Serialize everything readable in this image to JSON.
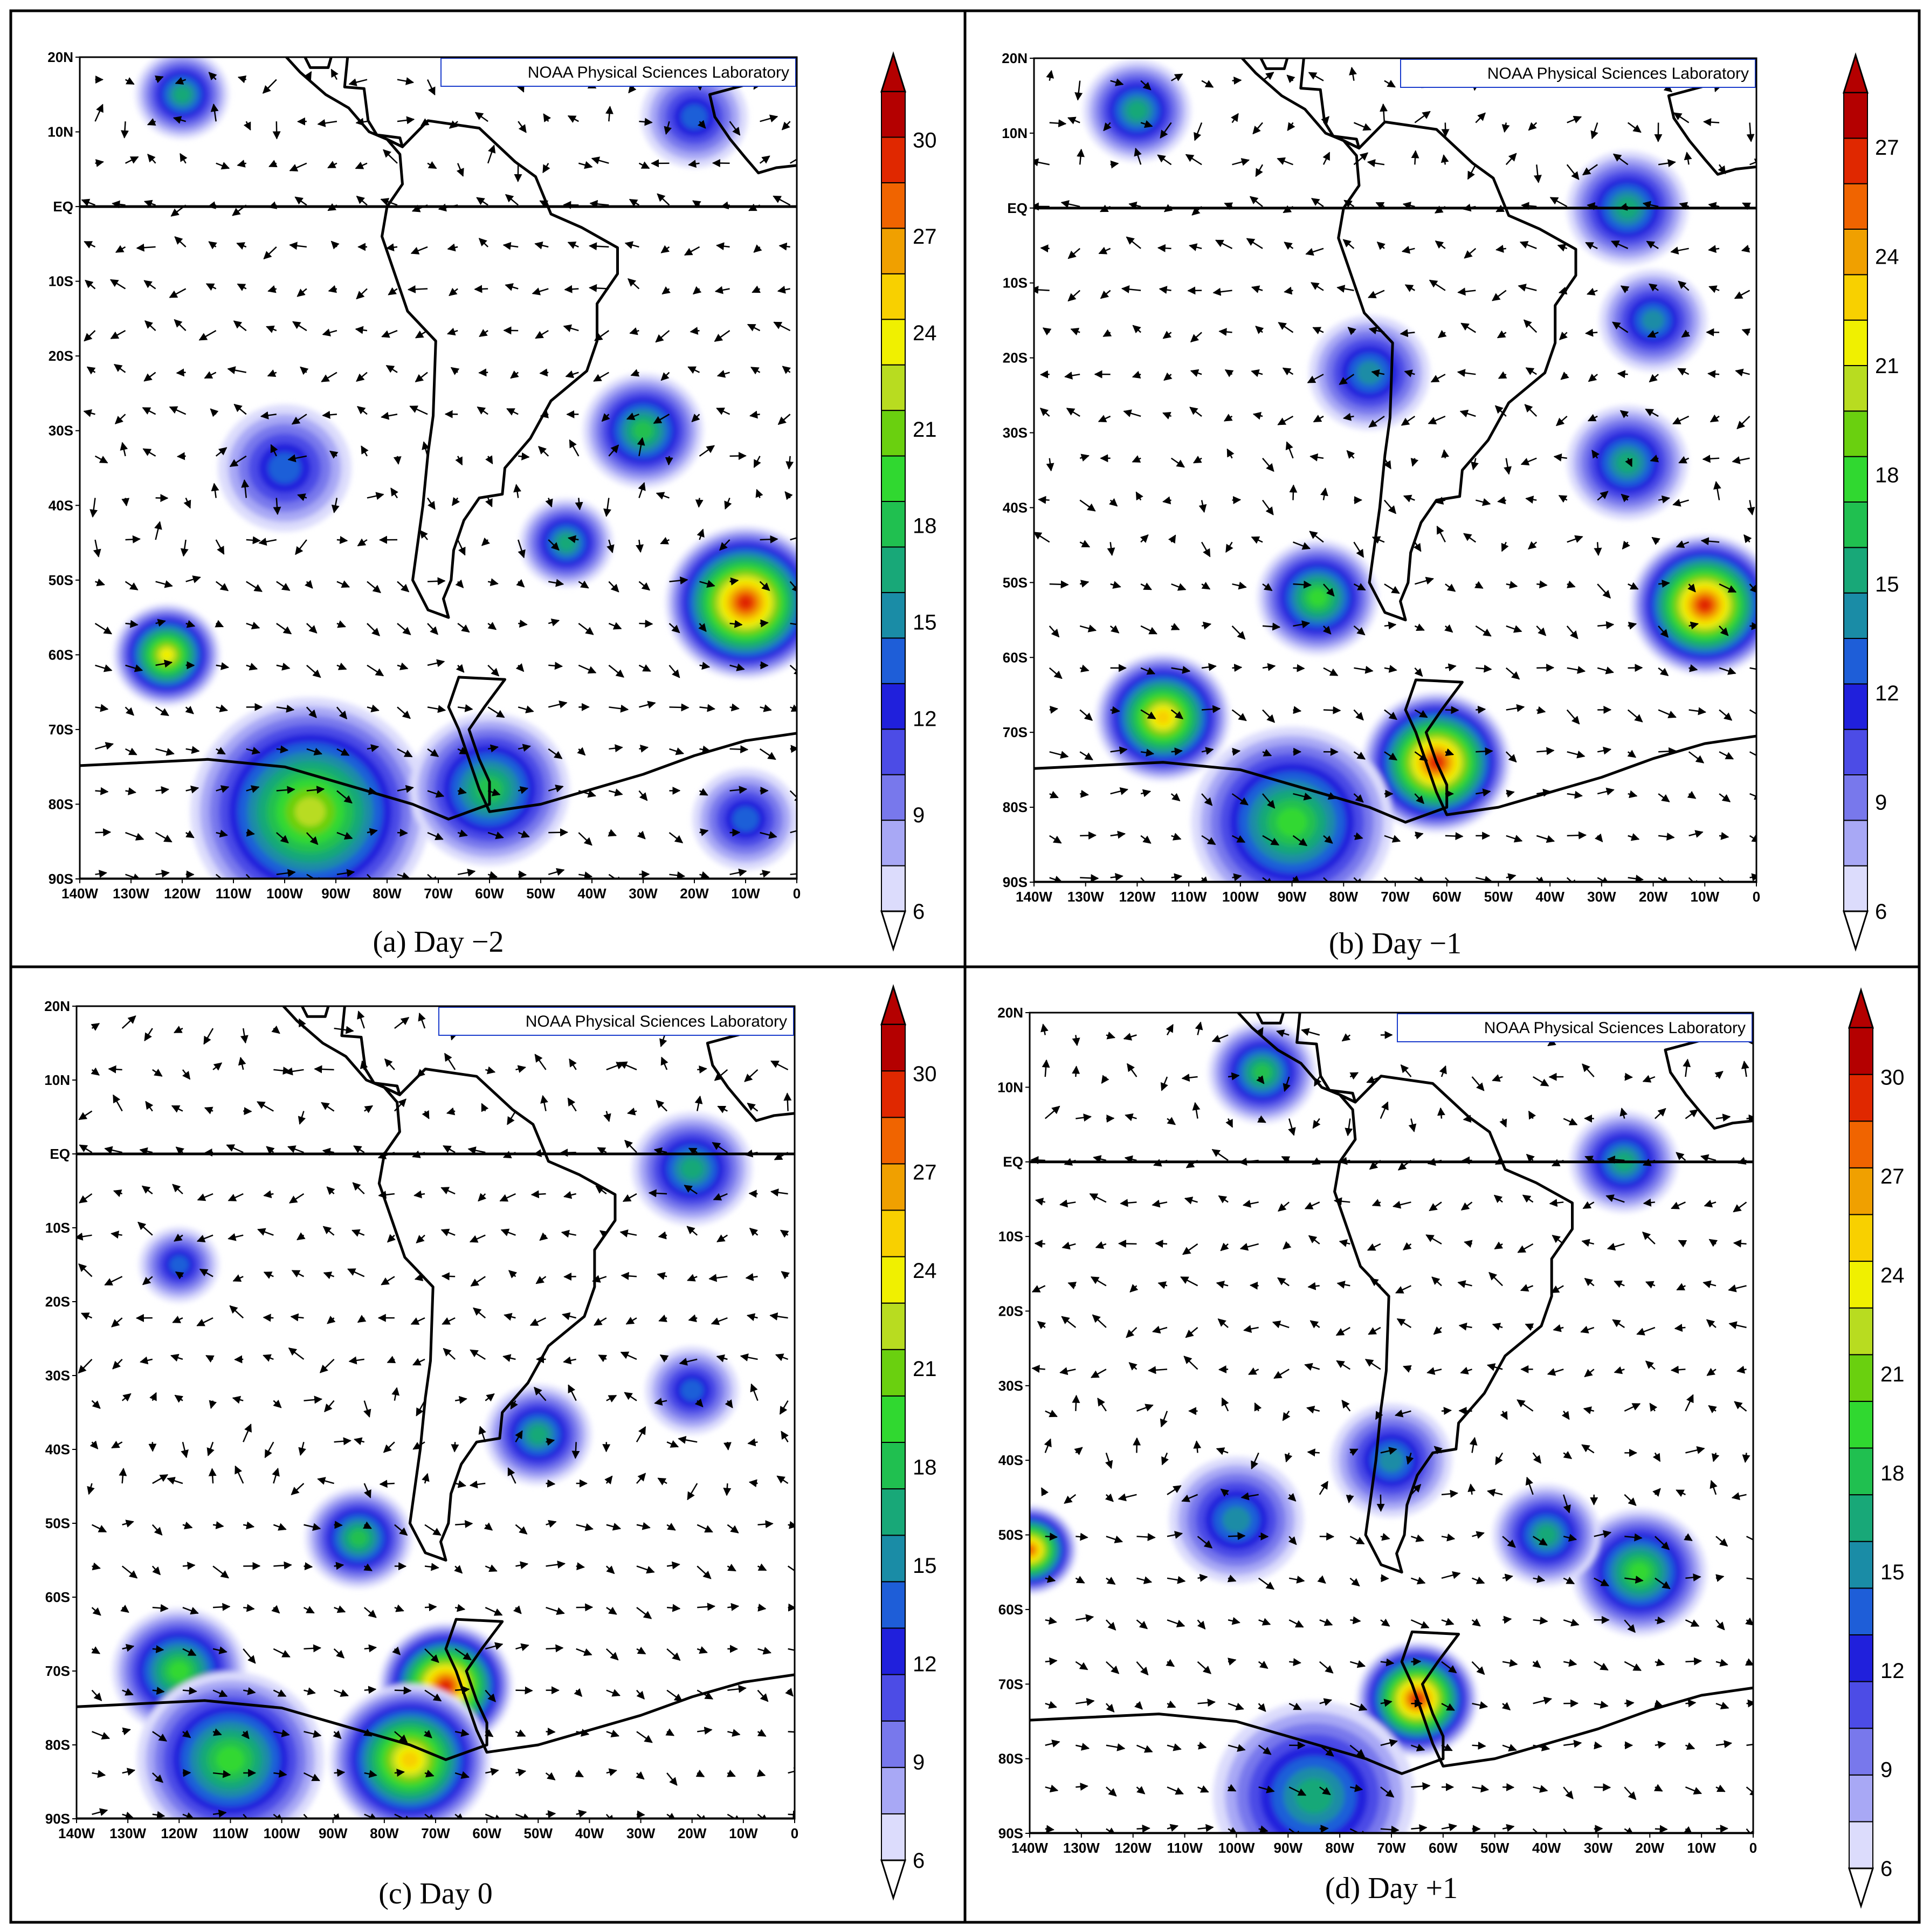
{
  "figure": {
    "credit": "NOAA Physical Sciences Laboratory",
    "lat_ticks": [
      "20N",
      "10N",
      "EQ",
      "10S",
      "20S",
      "30S",
      "40S",
      "50S",
      "60S",
      "70S",
      "80S",
      "90S"
    ],
    "lon_ticks": [
      "140W",
      "130W",
      "120W",
      "110W",
      "100W",
      "90W",
      "80W",
      "70W",
      "60W",
      "50W",
      "40W",
      "30W",
      "20W",
      "10W",
      "0"
    ],
    "colors": [
      "#ffffff",
      "#dcdcfc",
      "#a8a8f5",
      "#7878ec",
      "#4c4ce6",
      "#2020dc",
      "#1e5ed8",
      "#1a8ca6",
      "#18a878",
      "#20c050",
      "#30d830",
      "#6ad00f",
      "#b8dc20",
      "#f0f000",
      "#f8d000",
      "#f0a000",
      "#f06400",
      "#e02800",
      "#b40000"
    ]
  },
  "panels": [
    {
      "caption": "(a) Day −2",
      "colorbar": {
        "labels": [
          "6",
          "9",
          "12",
          "15",
          "18",
          "21",
          "24",
          "27",
          "30"
        ]
      }
    },
    {
      "caption": "(b) Day −1",
      "colorbar": {
        "labels": [
          "6",
          "9",
          "12",
          "15",
          "18",
          "21",
          "24",
          "27"
        ]
      }
    },
    {
      "caption": "(c) Day 0",
      "colorbar": {
        "labels": [
          "6",
          "9",
          "12",
          "15",
          "18",
          "21",
          "24",
          "27",
          "30"
        ]
      }
    },
    {
      "caption": "(d) Day +1",
      "colorbar": {
        "labels": [
          "6",
          "9",
          "12",
          "15",
          "18",
          "21",
          "24",
          "27",
          "30"
        ]
      }
    }
  ]
}
